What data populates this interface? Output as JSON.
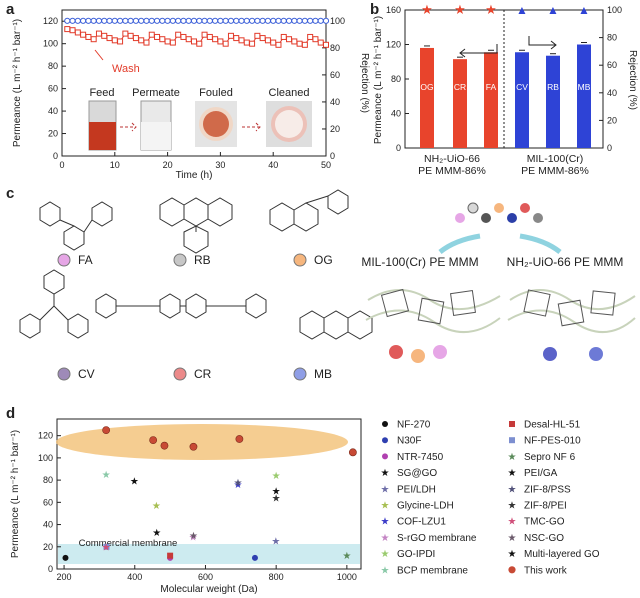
{
  "panels": {
    "a": {
      "label": "a",
      "xlabel": "Time (h)",
      "ylabel_left": "Permeance (L m⁻² h⁻¹ bar⁻¹)",
      "ylabel_right": "Rejection (%)",
      "wash": "Wash",
      "photos": [
        "Feed",
        "Permeate",
        "Fouled",
        "Cleaned"
      ],
      "yticks_left": [
        "0",
        "20",
        "40",
        "60",
        "80",
        "100",
        "120"
      ],
      "yticks_right": [
        "0",
        "20",
        "40",
        "60",
        "80",
        "100"
      ],
      "xticks": [
        "0",
        "10",
        "20",
        "30",
        "40",
        "50"
      ]
    },
    "b": {
      "label": "b",
      "ylabel_left": "Permeance (L m⁻² h⁻¹ bar⁻¹)",
      "ylabel_right": "Rejection (%)",
      "yticks_left": [
        "0",
        "40",
        "80",
        "120",
        "160"
      ],
      "yticks_right": [
        "0",
        "20",
        "40",
        "60",
        "80",
        "100"
      ],
      "group1": "NH₂-UiO-66",
      "group1b": "PE MMM-86%",
      "group2": "MIL-100(Cr)",
      "group2b": "PE MMM-86%"
    },
    "c": {
      "label": "c",
      "dyes": [
        "FA",
        "RB",
        "OG",
        "CV",
        "CR",
        "MB"
      ],
      "schematic_left": "MIL-100(Cr) PE MMM",
      "schematic_right": "NH₂-UiO-66 PE MMM"
    },
    "d": {
      "label": "d",
      "xlabel": "Molecular weight (Da)",
      "ylabel": "Permeance (L m⁻² h⁻¹ bar⁻¹)",
      "commercial": "Commercial membrane",
      "yticks": [
        "0",
        "20",
        "40",
        "60",
        "80",
        "100",
        "120"
      ],
      "xticks": [
        "200",
        "400",
        "600",
        "800",
        "1000"
      ],
      "legend_left": [
        "NF-270",
        "N30F",
        "NTR-7450",
        "SG@GO",
        "PEI/LDH",
        "Glycine-LDH",
        "COF-LZU1",
        "S-rGO membrane",
        "GO-IPDI",
        "BCP membrane"
      ],
      "legend_right": [
        "Desal-HL-51",
        "NF-PES-010",
        "Sepro NF 6",
        "PEI/GA",
        "ZIF-8/PSS",
        "ZIF-8/PEI",
        "TMC-GO",
        "NSC-GO",
        "Multi-layered GO",
        "This work"
      ]
    }
  },
  "colors": {
    "permeance_red": "#e23b2a",
    "rejection_blue": "#3b5fd8",
    "bar_red": "#e8442c",
    "bar_blue": "#2e43d6",
    "highlight_orange": "#f3c47e",
    "commercial_band": "#cdebf0"
  },
  "chart_data": [
    {
      "type": "line",
      "panel": "a",
      "title": "",
      "xlabel": "Time (h)",
      "ylabel": "Permeance (L m⁻² h⁻¹ bar⁻¹)",
      "y2label": "Rejection (%)",
      "xlim": [
        0,
        50
      ],
      "ylim": [
        0,
        130
      ],
      "y2lim": [
        0,
        108
      ],
      "series": [
        {
          "axis": "left",
          "x": [
            1,
            2,
            3,
            4,
            5,
            6,
            7,
            8,
            9,
            10,
            11,
            12,
            13,
            14,
            15,
            16,
            17,
            18,
            19,
            20,
            21,
            22,
            23,
            24,
            25,
            26,
            27,
            28,
            29,
            30,
            31,
            32,
            33,
            34,
            35,
            36,
            37,
            38,
            39,
            40,
            41,
            42,
            43,
            44,
            45,
            46,
            47,
            48,
            49,
            50
          ],
          "values": [
            113,
            112,
            110,
            108,
            106,
            104,
            109,
            107,
            105,
            103,
            102,
            109,
            107,
            105,
            103,
            101,
            108,
            106,
            104,
            102,
            101,
            108,
            106,
            104,
            102,
            100,
            108,
            106,
            104,
            102,
            100,
            107,
            105,
            103,
            101,
            100,
            107,
            105,
            103,
            101,
            99,
            106,
            104,
            102,
            100,
            99,
            106,
            104,
            101,
            99
          ]
        },
        {
          "axis": "right",
          "x": [
            1,
            2,
            3,
            4,
            5,
            6,
            7,
            8,
            9,
            10,
            11,
            12,
            13,
            14,
            15,
            16,
            17,
            18,
            19,
            20,
            21,
            22,
            23,
            24,
            25,
            26,
            27,
            28,
            29,
            30,
            31,
            32,
            33,
            34,
            35,
            36,
            37,
            38,
            39,
            40,
            41,
            42,
            43,
            44,
            45,
            46,
            47,
            48,
            49,
            50
          ],
          "values": [
            100,
            100,
            100,
            100,
            100,
            100,
            100,
            100,
            100,
            100,
            100,
            100,
            100,
            100,
            100,
            100,
            100,
            100,
            100,
            100,
            100,
            100,
            100,
            100,
            100,
            100,
            100,
            100,
            100,
            100,
            100,
            100,
            100,
            100,
            100,
            100,
            100,
            100,
            100,
            100,
            100,
            100,
            100,
            100,
            100,
            100,
            100,
            100,
            100,
            100
          ]
        }
      ]
    },
    {
      "type": "bar",
      "panel": "b",
      "title": "",
      "categories": [
        "OG",
        "CR",
        "FA",
        "CV",
        "RB",
        "MB"
      ],
      "ylim": [
        0,
        160
      ],
      "y2lim": [
        0,
        100
      ],
      "series": [
        {
          "name": "",
          "values": [
            116,
            103,
            111,
            111,
            107,
            120
          ]
        },
        {
          "axis": "right",
          "values": [
            100,
            100,
            100,
            100,
            100,
            100
          ]
        }
      ]
    },
    {
      "type": "scatter",
      "panel": "d",
      "title": "",
      "xlabel": "Molecular weight (Da)",
      "ylabel": "Permeance (L m⁻² h⁻¹ bar⁻¹)",
      "xlim": [
        180,
        1040
      ],
      "ylim": [
        0,
        135
      ],
      "series": [
        {
          "name": "NF-270",
          "x": [
            204
          ],
          "values": [
            10
          ]
        },
        {
          "name": "N30F",
          "x": [
            740
          ],
          "values": [
            10
          ]
        },
        {
          "name": "NTR-7450",
          "x": [
            500
          ],
          "values": [
            10
          ]
        },
        {
          "name": "SG@GO",
          "x": [
            399
          ],
          "values": [
            79
          ]
        },
        {
          "name": "PEI/LDH",
          "x": [
            799
          ],
          "values": [
            25
          ]
        },
        {
          "name": "Glycine-LDH",
          "x": [
            461
          ],
          "values": [
            57
          ]
        },
        {
          "name": "COF-LZU1",
          "x": [
            692
          ],
          "values": [
            76
          ]
        },
        {
          "name": "S-rGO membrane",
          "x": [
            565
          ],
          "values": [
            29
          ]
        },
        {
          "name": "GO-IPDI",
          "x": [
            800
          ],
          "values": [
            84
          ]
        },
        {
          "name": "BCP membrane",
          "x": [
            319
          ],
          "values": [
            85
          ]
        },
        {
          "name": "Desal-HL-51",
          "x": [
            500
          ],
          "values": [
            12
          ]
        },
        {
          "name": "NF-PES-010",
          "x": [
            320
          ],
          "values": [
            20
          ]
        },
        {
          "name": "Sepro NF 6",
          "x": [
            1000
          ],
          "values": [
            12
          ]
        },
        {
          "name": "PEI/GA",
          "x": [
            800
          ],
          "values": [
            70
          ]
        },
        {
          "name": "ZIF-8/PSS",
          "x": [
            692
          ],
          "values": [
            78
          ]
        },
        {
          "name": "ZIF-8/PEI",
          "x": [
            800
          ],
          "values": [
            64
          ]
        },
        {
          "name": "TMC-GO",
          "x": [
            319
          ],
          "values": [
            20
          ]
        },
        {
          "name": "NSC-GO",
          "x": [
            566
          ],
          "values": [
            30
          ]
        },
        {
          "name": "Multi-layered GO",
          "x": [
            462
          ],
          "values": [
            33
          ]
        },
        {
          "name": "This work",
          "x": [
            319,
            452,
            484,
            566,
            696,
            1017
          ],
          "values": [
            125,
            116,
            111,
            110,
            117,
            105
          ]
        }
      ]
    }
  ]
}
